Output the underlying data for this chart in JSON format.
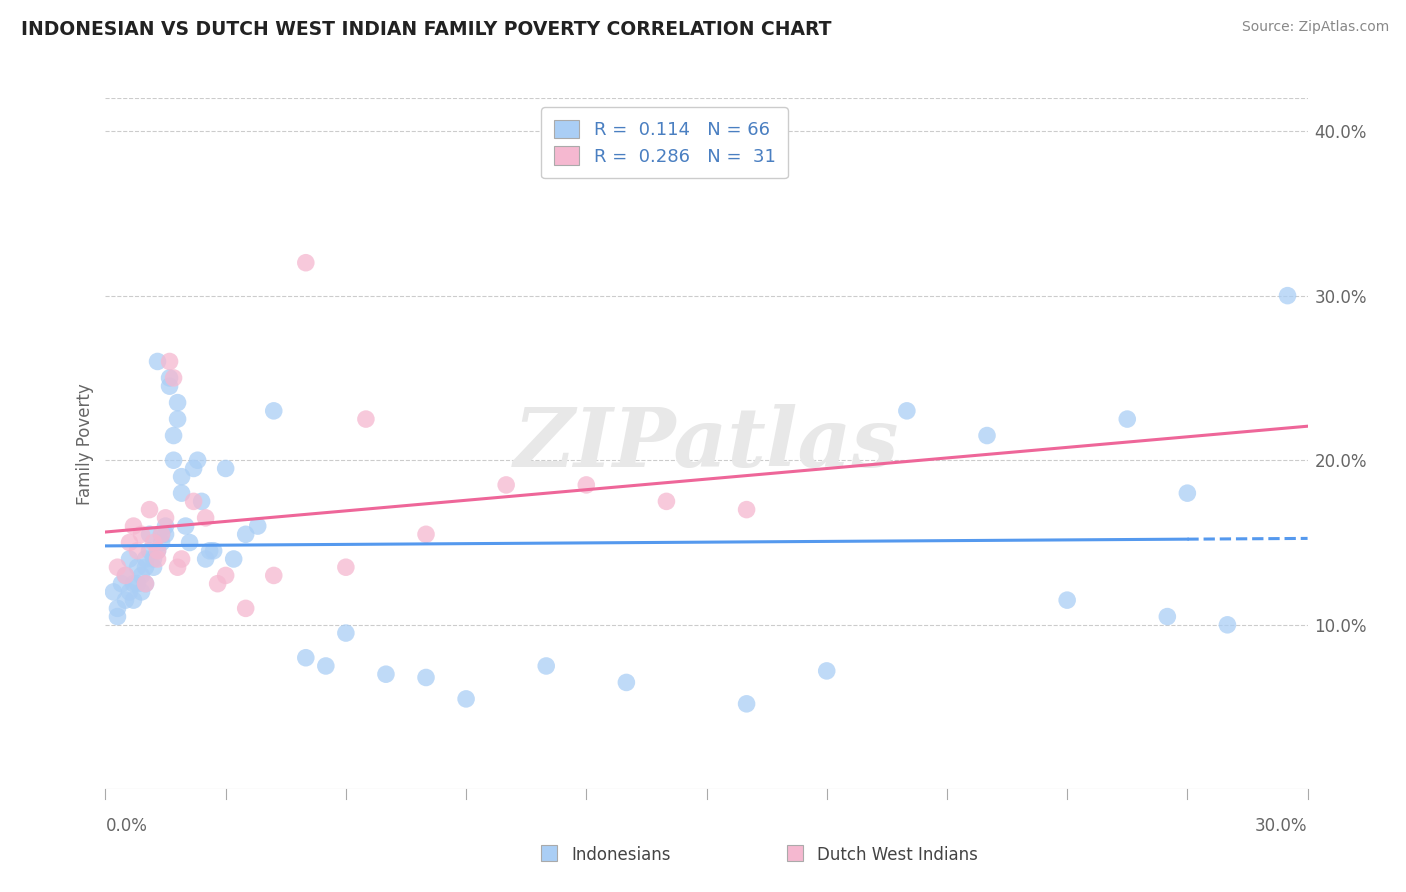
{
  "title": "INDONESIAN VS DUTCH WEST INDIAN FAMILY POVERTY CORRELATION CHART",
  "source": "Source: ZipAtlas.com",
  "ylabel": "Family Poverty",
  "xlim": [
    0.0,
    0.3
  ],
  "ylim": [
    0.0,
    0.42
  ],
  "ytick_vals": [
    0.1,
    0.2,
    0.3,
    0.4
  ],
  "ytick_labels": [
    "10.0%",
    "20.0%",
    "30.0%",
    "40.0%"
  ],
  "xtick_label_left": "0.0%",
  "xtick_label_right": "30.0%",
  "legend_line1": "R =  0.114   N = 66",
  "legend_line2": "R =  0.286   N =  31",
  "legend_text_color": "#4a7fc1",
  "blue_scatter_color": "#aacef5",
  "pink_scatter_color": "#f5b8d0",
  "blue_line_color": "#5599ee",
  "pink_line_color": "#ee6699",
  "watermark_color": "#e8e8e8",
  "background_color": "#ffffff",
  "grid_color": "#cccccc",
  "axis_label_color": "#666666",
  "title_color": "#222222",
  "source_color": "#888888",
  "indo_x": [
    0.002,
    0.003,
    0.003,
    0.004,
    0.005,
    0.005,
    0.006,
    0.006,
    0.007,
    0.007,
    0.008,
    0.008,
    0.009,
    0.009,
    0.01,
    0.01,
    0.01,
    0.011,
    0.011,
    0.012,
    0.012,
    0.013,
    0.013,
    0.014,
    0.014,
    0.015,
    0.015,
    0.016,
    0.016,
    0.017,
    0.017,
    0.018,
    0.018,
    0.019,
    0.019,
    0.02,
    0.021,
    0.022,
    0.023,
    0.024,
    0.025,
    0.026,
    0.027,
    0.03,
    0.032,
    0.035,
    0.038,
    0.042,
    0.05,
    0.055,
    0.06,
    0.07,
    0.08,
    0.09,
    0.11,
    0.13,
    0.16,
    0.18,
    0.2,
    0.22,
    0.24,
    0.255,
    0.265,
    0.27,
    0.28,
    0.295
  ],
  "indo_y": [
    0.12,
    0.11,
    0.105,
    0.125,
    0.13,
    0.115,
    0.14,
    0.12,
    0.125,
    0.115,
    0.135,
    0.125,
    0.13,
    0.12,
    0.14,
    0.135,
    0.125,
    0.155,
    0.145,
    0.14,
    0.135,
    0.145,
    0.26,
    0.15,
    0.155,
    0.16,
    0.155,
    0.25,
    0.245,
    0.215,
    0.2,
    0.225,
    0.235,
    0.19,
    0.18,
    0.16,
    0.15,
    0.195,
    0.2,
    0.175,
    0.14,
    0.145,
    0.145,
    0.195,
    0.14,
    0.155,
    0.16,
    0.23,
    0.08,
    0.075,
    0.095,
    0.07,
    0.068,
    0.055,
    0.075,
    0.065,
    0.052,
    0.072,
    0.23,
    0.215,
    0.115,
    0.225,
    0.105,
    0.18,
    0.1,
    0.3
  ],
  "dutch_x": [
    0.003,
    0.005,
    0.006,
    0.007,
    0.008,
    0.009,
    0.01,
    0.011,
    0.012,
    0.013,
    0.013,
    0.014,
    0.015,
    0.016,
    0.017,
    0.018,
    0.019,
    0.022,
    0.025,
    0.028,
    0.03,
    0.035,
    0.042,
    0.05,
    0.06,
    0.065,
    0.08,
    0.1,
    0.12,
    0.14,
    0.16
  ],
  "dutch_y": [
    0.135,
    0.13,
    0.15,
    0.16,
    0.145,
    0.155,
    0.125,
    0.17,
    0.15,
    0.145,
    0.14,
    0.155,
    0.165,
    0.26,
    0.25,
    0.135,
    0.14,
    0.175,
    0.165,
    0.125,
    0.13,
    0.11,
    0.13,
    0.32,
    0.135,
    0.225,
    0.155,
    0.185,
    0.185,
    0.175,
    0.17
  ]
}
